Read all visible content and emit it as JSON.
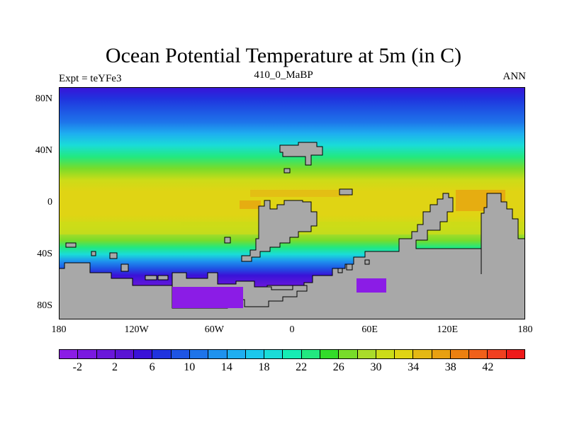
{
  "title": "Ocean Potential Temperature at 5m (in C)",
  "subtitle_left": "Expt = teYFe3",
  "subtitle_center": "410_0_MaBP",
  "subtitle_right": "ANN",
  "lat_ticks": [
    {
      "label": "80N",
      "value": 80
    },
    {
      "label": "40N",
      "value": 40
    },
    {
      "label": "0",
      "value": 0
    },
    {
      "label": "40S",
      "value": -40
    },
    {
      "label": "80S",
      "value": -80
    }
  ],
  "lon_ticks": [
    {
      "label": "180",
      "value": -180
    },
    {
      "label": "120W",
      "value": -120
    },
    {
      "label": "60W",
      "value": -60
    },
    {
      "label": "0",
      "value": 0
    },
    {
      "label": "60E",
      "value": 60
    },
    {
      "label": "120E",
      "value": 120
    },
    {
      "label": "180",
      "value": 180
    }
  ],
  "colorbar": {
    "colors": [
      "#8b1ce6",
      "#7a19e0",
      "#6a17da",
      "#5a14d4",
      "#3a12d8",
      "#2033de",
      "#1e55e4",
      "#1e74ea",
      "#1e92ee",
      "#1eaef0",
      "#1cc8ec",
      "#1adcd8",
      "#16ecb4",
      "#22e880",
      "#33dc2a",
      "#78dc2a",
      "#aadc2a",
      "#ccdc18",
      "#e0d414",
      "#e4b814",
      "#e8a010",
      "#ec8010",
      "#f0601a",
      "#f04020",
      "#ee1a1a"
    ],
    "labels": [
      "-2",
      "2",
      "6",
      "10",
      "14",
      "18",
      "22",
      "26",
      "30",
      "34",
      "38",
      "42"
    ]
  },
  "land_color": "#a8a8a8",
  "chart_data": {
    "type": "heatmap",
    "title": "Ocean Potential Temperature at 5m (in C)",
    "variable_units": "C",
    "experiment": "teYFe3",
    "time": "410_0_MaBP",
    "season": "ANN",
    "xlim": [
      -180,
      180
    ],
    "ylim": [
      -90,
      90
    ],
    "zonal_mean_profile": {
      "lat": [
        90,
        80,
        70,
        60,
        50,
        40,
        30,
        20,
        10,
        0,
        -10,
        -20,
        -30,
        -40,
        -50,
        -60,
        -70,
        -80
      ],
      "temperature": [
        4,
        5,
        8,
        12,
        17,
        22,
        27,
        31,
        32,
        32,
        31,
        28,
        24,
        17,
        10,
        5,
        2,
        0
      ]
    },
    "colorbar_range": [
      -4,
      44
    ],
    "colorbar_interval": 2
  }
}
